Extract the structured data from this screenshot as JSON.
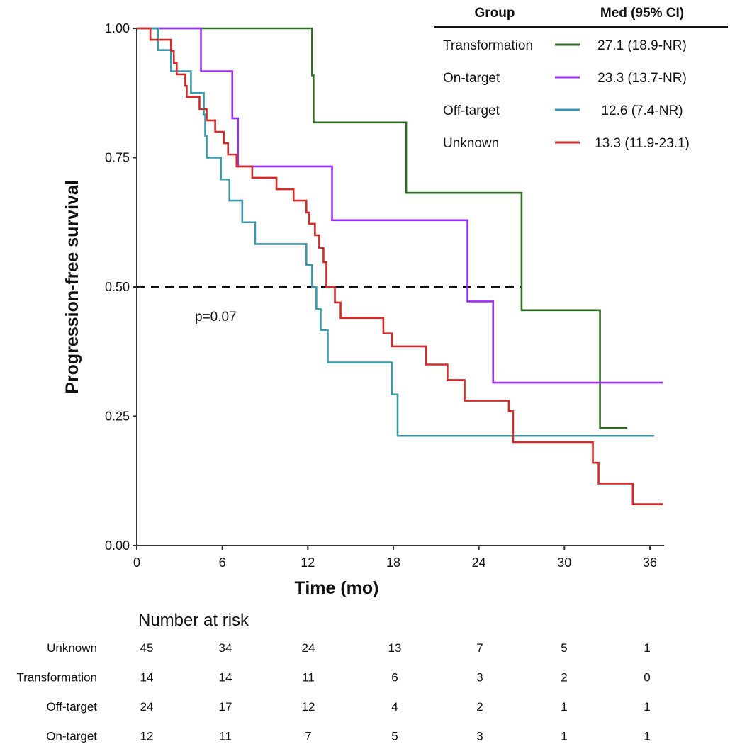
{
  "chart_data": {
    "type": "line",
    "subtype": "kaplan-meier step",
    "title": "",
    "xlabel": "Time (mo)",
    "ylabel": "Progression-free survival",
    "xlim": [
      0,
      37
    ],
    "ylim": [
      0,
      1
    ],
    "xticks": [
      0,
      6,
      12,
      18,
      24,
      30,
      36
    ],
    "xtick_labels": [
      "0",
      "6",
      "12",
      "18",
      "24",
      "30",
      "36"
    ],
    "yticks": [
      0,
      0.25,
      0.5,
      0.75,
      1.0
    ],
    "ytick_labels": [
      "0.00",
      "0.25",
      "0.50",
      "0.75",
      "1.00"
    ],
    "grid": false,
    "reference_line": {
      "y": 0.5,
      "x_end": 27.0,
      "style": "dashed"
    },
    "annotation": "p=0.07",
    "legend": {
      "placement": "top-right",
      "header_group": "Group",
      "header_median": "Med (95% CI)"
    },
    "series": [
      {
        "name": "Transformation",
        "median": "27.1 (18.9-NR)",
        "color": "#2f6b1e",
        "steps": [
          [
            0,
            1
          ],
          [
            12.3,
            0.909
          ],
          [
            12.4,
            0.818
          ],
          [
            18.9,
            0.682
          ],
          [
            27.0,
            0.455
          ],
          [
            32.5,
            0.227
          ]
        ],
        "end": 34.4
      },
      {
        "name": "On-target",
        "median": "23.3 (13.7-NR)",
        "color": "#9a2ef5",
        "steps": [
          [
            0,
            1
          ],
          [
            4.5,
            0.917
          ],
          [
            6.7,
            0.826
          ],
          [
            7.1,
            0.733
          ],
          [
            13.7,
            0.629
          ],
          [
            23.2,
            0.472
          ],
          [
            25.0,
            0.315
          ]
        ],
        "end": 36.9
      },
      {
        "name": "Off-target",
        "median": "12.6 (7.4-NR)",
        "color": "#3a98a8",
        "steps": [
          [
            0,
            1
          ],
          [
            1.5,
            0.958
          ],
          [
            2.4,
            0.917
          ],
          [
            3.8,
            0.875
          ],
          [
            4.7,
            0.833
          ],
          [
            4.8,
            0.792
          ],
          [
            4.9,
            0.75
          ],
          [
            5.9,
            0.708
          ],
          [
            6.5,
            0.667
          ],
          [
            7.4,
            0.625
          ],
          [
            8.3,
            0.583
          ],
          [
            11.9,
            0.542
          ],
          [
            12.3,
            0.5
          ],
          [
            12.6,
            0.458
          ],
          [
            12.9,
            0.417
          ],
          [
            13.4,
            0.354
          ],
          [
            17.9,
            0.292
          ],
          [
            18.3,
            0.212
          ]
        ],
        "end": 36.3
      },
      {
        "name": "Unknown",
        "median": "13.3 (11.9-23.1)",
        "color": "#d42a2a",
        "steps": [
          [
            0,
            1
          ],
          [
            0.95,
            0.978
          ],
          [
            2.4,
            0.956
          ],
          [
            2.6,
            0.933
          ],
          [
            2.8,
            0.911
          ],
          [
            3.4,
            0.889
          ],
          [
            3.5,
            0.867
          ],
          [
            4.4,
            0.844
          ],
          [
            4.9,
            0.822
          ],
          [
            5.5,
            0.8
          ],
          [
            6.1,
            0.778
          ],
          [
            6.4,
            0.756
          ],
          [
            7.0,
            0.733
          ],
          [
            8.1,
            0.711
          ],
          [
            9.8,
            0.689
          ],
          [
            11.0,
            0.667
          ],
          [
            11.9,
            0.644
          ],
          [
            12.1,
            0.622
          ],
          [
            12.5,
            0.6
          ],
          [
            12.8,
            0.575
          ],
          [
            13.1,
            0.548
          ],
          [
            13.3,
            0.5
          ],
          [
            13.9,
            0.47
          ],
          [
            14.3,
            0.44
          ],
          [
            17.3,
            0.41
          ],
          [
            17.9,
            0.385
          ],
          [
            20.3,
            0.35
          ],
          [
            21.8,
            0.32
          ],
          [
            23.0,
            0.28
          ],
          [
            26.1,
            0.26
          ],
          [
            26.4,
            0.2
          ],
          [
            32.0,
            0.16
          ],
          [
            32.4,
            0.12
          ],
          [
            34.8,
            0.08
          ]
        ],
        "end": 36.9
      }
    ],
    "risk_table": {
      "title": "Number at risk",
      "times": [
        0,
        6,
        12,
        18,
        24,
        30,
        36
      ],
      "rows": [
        {
          "name": "Unknown",
          "values": [
            "45",
            "34",
            "24",
            "13",
            "7",
            "5",
            "1"
          ]
        },
        {
          "name": "Transformation",
          "values": [
            "14",
            "14",
            "11",
            "6",
            "3",
            "2",
            "0"
          ]
        },
        {
          "name": "Off-target",
          "values": [
            "24",
            "17",
            "12",
            "4",
            "2",
            "1",
            "1"
          ]
        },
        {
          "name": "On-target",
          "values": [
            "12",
            "11",
            "7",
            "5",
            "3",
            "1",
            "1"
          ]
        }
      ]
    }
  }
}
